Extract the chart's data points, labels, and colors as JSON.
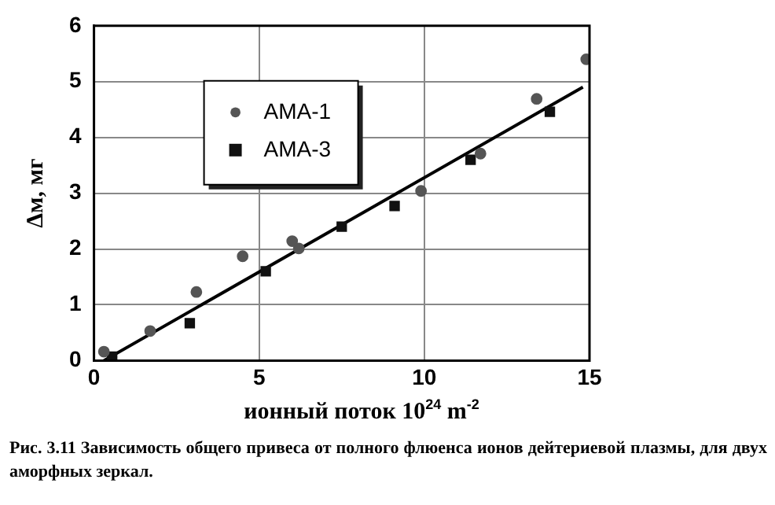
{
  "chart_data": {
    "type": "scatter",
    "xlabel": "ионный поток 10$^{24}$ m$^{-2}$",
    "ylabel": "Δм, мг",
    "xlim": [
      0,
      15
    ],
    "ylim": [
      0,
      6
    ],
    "xticks": [
      0,
      5,
      10,
      15
    ],
    "yticks": [
      0,
      1,
      2,
      3,
      4,
      5,
      6
    ],
    "grid": true,
    "legend": "top left",
    "series": [
      {
        "name": "AMA-1",
        "color": "#555555",
        "marker": "circle",
        "x": [
          0.3,
          1.7,
          3.1,
          4.5,
          6.0,
          6.2,
          9.9,
          11.7,
          13.4,
          14.9
        ],
        "values": [
          0.16,
          0.53,
          1.23,
          1.87,
          2.14,
          2.01,
          3.04,
          3.71,
          4.69,
          5.4
        ]
      },
      {
        "name": "AMA-3",
        "color": "#111111",
        "marker": "square",
        "x": [
          0.55,
          2.9,
          5.2,
          7.5,
          9.1,
          11.4,
          13.8
        ],
        "values": [
          0.07,
          0.67,
          1.6,
          2.4,
          2.77,
          3.6,
          4.46
        ]
      },
      {
        "type": "line",
        "color": "#000000",
        "marker": "none",
        "x": [
          0.3,
          14.8
        ],
        "values": [
          0,
          4.9
        ]
      }
    ],
    "annotations": [
      "Рис. 3.11 Зависимость общего привеса от полного флюенса ионов дейтериевой плазмы, для двух аморфных зеркал."
    ]
  }
}
